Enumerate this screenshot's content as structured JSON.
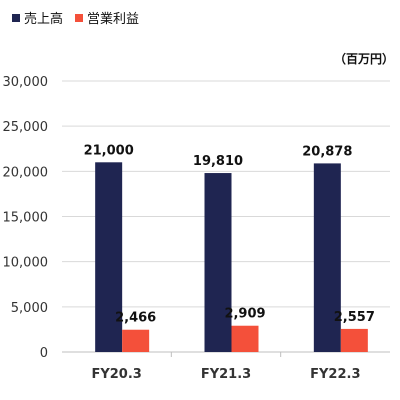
{
  "chart_data": {
    "type": "bar",
    "categories": [
      "FY20.3",
      "FY21.3",
      "FY22.3"
    ],
    "series": [
      {
        "name": "売上高",
        "color": "#1f2551",
        "values": [
          21000,
          19810,
          20878
        ],
        "labels": [
          "21,000",
          "19,810",
          "20,878"
        ]
      },
      {
        "name": "営業利益",
        "color": "#f4503a",
        "values": [
          2466,
          2909,
          2557
        ],
        "labels": [
          "2,466",
          "2,909",
          "2,557"
        ]
      }
    ],
    "unit": "（百万円）",
    "ylim": [
      0,
      30000
    ],
    "yticks": [
      0,
      5000,
      10000,
      15000,
      20000,
      25000,
      30000
    ],
    "ytick_labels": [
      "0",
      "5,000",
      "10,000",
      "15,000",
      "20,000",
      "25,000",
      "30,000"
    ],
    "grid": true,
    "legend_position": "top-left"
  }
}
